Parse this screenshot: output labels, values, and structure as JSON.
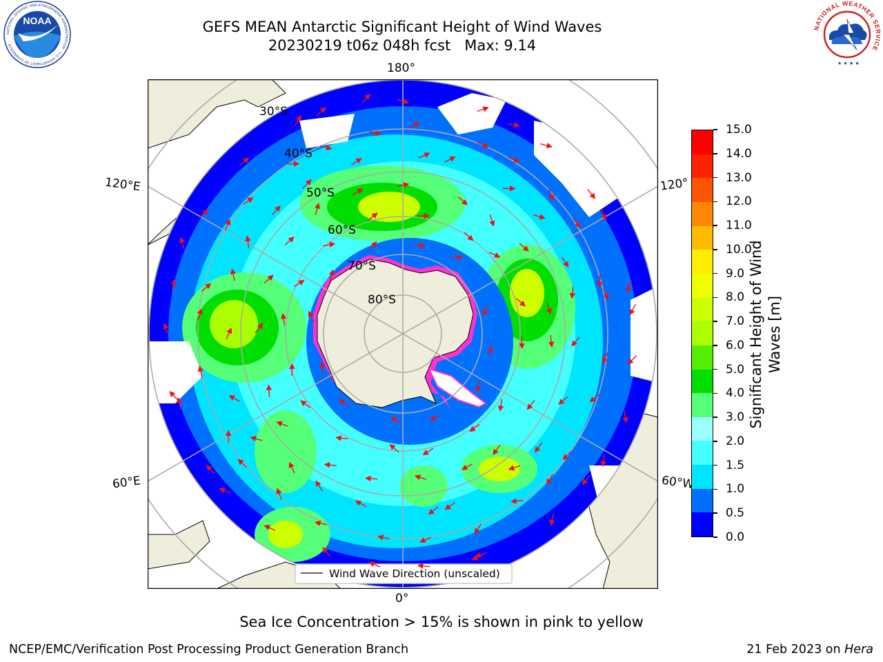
{
  "header": {
    "title": "GEFS MEAN Antarctic Significant Height of Wind Waves",
    "subtitle": "20230219 t06z 048h fcst   Max: 9.14"
  },
  "logos": {
    "noaa_text": "NOAA",
    "noaa_ring": "NATIONAL OCEANIC AND ATMOSPHERIC ADMINISTRATION · U.S. DEPARTMENT OF COMMERCE ·",
    "nws_ring": "NATIONAL WEATHER SERVICE"
  },
  "map": {
    "longitude_labels": [
      "180°",
      "120°E",
      "120°",
      "60°E",
      "60°W",
      "0°"
    ],
    "latitude_labels": [
      "30°S",
      "40°S",
      "50°S",
      "60°S",
      "70°S",
      "80°S"
    ],
    "legend_label": "Wind Wave Direction (unscaled)",
    "colors": {
      "land": "#efeedc",
      "arrow": "#ee1111",
      "ice_edge": "#ff33cc"
    }
  },
  "colorbar": {
    "label_line1": "Significant Height of Wind",
    "label_line2": "Waves [m]",
    "levels": [
      "0.0",
      "0.5",
      "1.0",
      "1.5",
      "2.0",
      "3.0",
      "4.0",
      "5.0",
      "6.0",
      "7.0",
      "8.0",
      "9.0",
      "10.0",
      "11.0",
      "12.0",
      "13.0",
      "14.0",
      "15.0"
    ],
    "colors": [
      "#0000ff",
      "#0070ff",
      "#00e5ff",
      "#44ffff",
      "#99ffff",
      "#55ff77",
      "#00dd00",
      "#55ee00",
      "#aaff00",
      "#ccff00",
      "#eeff00",
      "#ffee00",
      "#ffbb00",
      "#ff8800",
      "#ff5500",
      "#ff2200",
      "#ff0000"
    ]
  },
  "caption": "Sea Ice Concentration > 15% is shown in pink to yellow",
  "footer": {
    "left": "NCEP/EMC/Verification Post Processing Product Generation Branch",
    "date": "21 Feb 2023 on ",
    "host": "Hera"
  }
}
